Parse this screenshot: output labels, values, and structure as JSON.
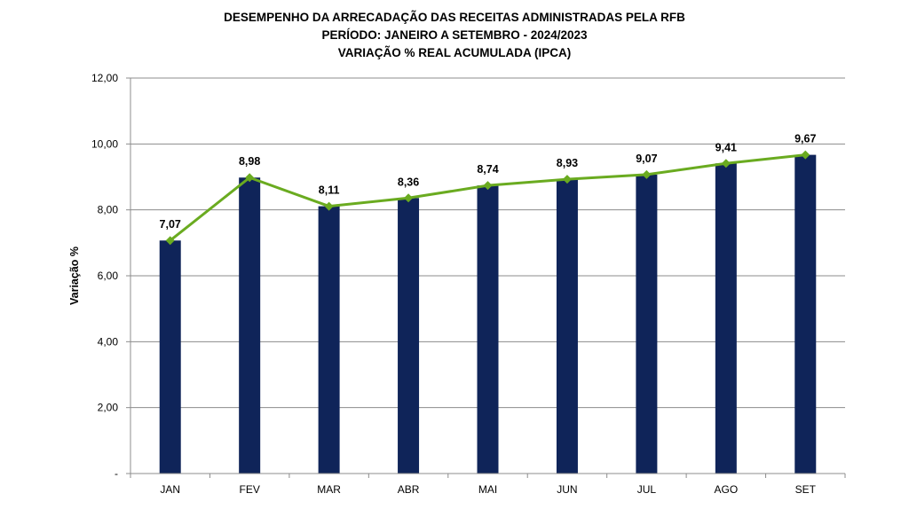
{
  "chart_data": {
    "type": "bar",
    "title_lines": [
      "DESEMPENHO DA ARRECADAÇÃO DAS RECEITAS ADMINISTRADAS PELA RFB",
      "PERÍODO: JANEIRO A SETEMBRO - 2024/2023",
      "VARIAÇÃO % REAL ACUMULADA (IPCA)"
    ],
    "ylabel": "Variação %",
    "xlabel": "",
    "categories": [
      "JAN",
      "FEV",
      "MAR",
      "ABR",
      "MAI",
      "JUN",
      "JUL",
      "AGO",
      "SET"
    ],
    "values": [
      7.07,
      8.98,
      8.11,
      8.36,
      8.74,
      8.93,
      9.07,
      9.41,
      9.67
    ],
    "data_labels": [
      "7,07",
      "8,98",
      "8,11",
      "8,36",
      "8,74",
      "8,93",
      "9,07",
      "9,41",
      "9,67"
    ],
    "overlay_line": true,
    "ylim": [
      0,
      12
    ],
    "yticks": [
      0,
      2,
      4,
      6,
      8,
      10,
      12
    ],
    "ytick_labels": [
      "-",
      "2,00",
      "4,00",
      "6,00",
      "8,00",
      "10,00",
      "12,00"
    ],
    "grid": true,
    "colors": {
      "bar": "#0f2459",
      "line": "#6aab20",
      "marker": "#6aab20",
      "grid": "#8c8c8c"
    }
  }
}
